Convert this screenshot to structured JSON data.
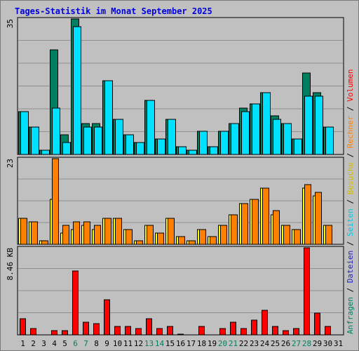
{
  "title": "Tages-Statistik im Monat September 2025",
  "chart_data": [
    {
      "type": "bar",
      "panel": "top",
      "ytick_top": "35",
      "ylim": [
        0,
        35
      ],
      "grid": true,
      "categories": [
        "1",
        "2",
        "3",
        "4",
        "5",
        "6",
        "7",
        "8",
        "9",
        "10",
        "11",
        "12",
        "13",
        "14",
        "15",
        "16",
        "17",
        "18",
        "19",
        "20",
        "21",
        "22",
        "23",
        "24",
        "25",
        "26",
        "27",
        "28",
        "29",
        "30",
        "31"
      ],
      "series": [
        {
          "name": "Anfragen",
          "color": "#008060",
          "values": [
            11,
            7,
            1,
            27,
            5,
            35,
            8,
            8,
            19,
            9,
            5,
            3,
            14,
            4,
            9,
            2,
            1,
            6,
            2,
            6,
            8,
            12,
            13,
            16,
            10,
            8,
            4,
            21,
            16,
            7,
            0
          ]
        },
        {
          "name": "Seiten",
          "color": "#00e0ff",
          "values": [
            11,
            7,
            1,
            12,
            3,
            33,
            7,
            7,
            19,
            9,
            5,
            3,
            14,
            4,
            9,
            2,
            1,
            6,
            2,
            6,
            8,
            11,
            13,
            16,
            9,
            8,
            4,
            15,
            15,
            7,
            0
          ]
        },
        {
          "name": "Dateien",
          "color": "#2020c0",
          "values": [
            0,
            0,
            0,
            0,
            0,
            0,
            0,
            0,
            0,
            0,
            0,
            0,
            0,
            0,
            0,
            0,
            0,
            0,
            0,
            0,
            0,
            0,
            0,
            0,
            0,
            0,
            0,
            0,
            0,
            0,
            0
          ]
        }
      ]
    },
    {
      "type": "bar",
      "panel": "middle",
      "ytick_top": "23",
      "ylim": [
        0,
        23
      ],
      "grid": true,
      "categories": [
        "1",
        "2",
        "3",
        "4",
        "5",
        "6",
        "7",
        "8",
        "9",
        "10",
        "11",
        "12",
        "13",
        "14",
        "15",
        "16",
        "17",
        "18",
        "19",
        "20",
        "21",
        "22",
        "23",
        "24",
        "25",
        "26",
        "27",
        "28",
        "29",
        "30",
        "31"
      ],
      "series": [
        {
          "name": "Besuche",
          "color": "#ffff00",
          "values": [
            7,
            6,
            1,
            12,
            3,
            4,
            5,
            4,
            7,
            7,
            4,
            1,
            5,
            3,
            7,
            2,
            1,
            4,
            2,
            5,
            8,
            11,
            12,
            15,
            8,
            5,
            4,
            15,
            13,
            5,
            0
          ]
        },
        {
          "name": "Rechner",
          "color": "#ff8000",
          "values": [
            7,
            6,
            1,
            23,
            5,
            6,
            6,
            5,
            7,
            7,
            4,
            1,
            5,
            3,
            7,
            2,
            1,
            4,
            2,
            5,
            8,
            11,
            12,
            15,
            9,
            5,
            4,
            16,
            14,
            5,
            0
          ]
        }
      ]
    },
    {
      "type": "bar",
      "panel": "bottom",
      "ytick_top": "8.46 KB",
      "grid": true,
      "categories": [
        "1",
        "2",
        "3",
        "4",
        "5",
        "6",
        "7",
        "8",
        "9",
        "10",
        "11",
        "12",
        "13",
        "14",
        "15",
        "16",
        "17",
        "18",
        "19",
        "20",
        "21",
        "22",
        "23",
        "24",
        "25",
        "26",
        "27",
        "28",
        "29",
        "30",
        "31"
      ],
      "series": [
        {
          "name": "Volumen",
          "color": "#ff0000",
          "values": [
            1.6,
            0.6,
            0,
            0.4,
            0.4,
            6.2,
            1.2,
            1.1,
            3.4,
            0.8,
            0.8,
            0.6,
            1.6,
            0.6,
            0.8,
            0.1,
            0,
            0.8,
            0,
            0.6,
            1.2,
            0.6,
            1.4,
            2.4,
            0.8,
            0.4,
            0.6,
            8.46,
            2.1,
            0.8,
            0
          ]
        }
      ]
    }
  ],
  "x_weekend": [
    6,
    7,
    13,
    14,
    20,
    21,
    27,
    28
  ],
  "colors": {
    "weekday_label": "#000000",
    "weekend_label": "#008060",
    "title": "#0000e0",
    "grid": "#909090"
  },
  "legend": {
    "top_labels": [
      {
        "text": "Anfragen",
        "color": "#008060"
      },
      {
        "text": "/",
        "color": "#000000"
      },
      {
        "text": "Dateien",
        "color": "#2020c0"
      },
      {
        "text": "/",
        "color": "#000000"
      },
      {
        "text": "Seiten",
        "color": "#00c8e8"
      },
      {
        "text": "/",
        "color": "#000000"
      },
      {
        "text": "Besuche",
        "color": "#d0c000"
      },
      {
        "text": "/",
        "color": "#000000"
      },
      {
        "text": "Rechner",
        "color": "#ff8000"
      },
      {
        "text": "/",
        "color": "#000000"
      },
      {
        "text": "Volumen",
        "color": "#ff0000"
      }
    ]
  }
}
